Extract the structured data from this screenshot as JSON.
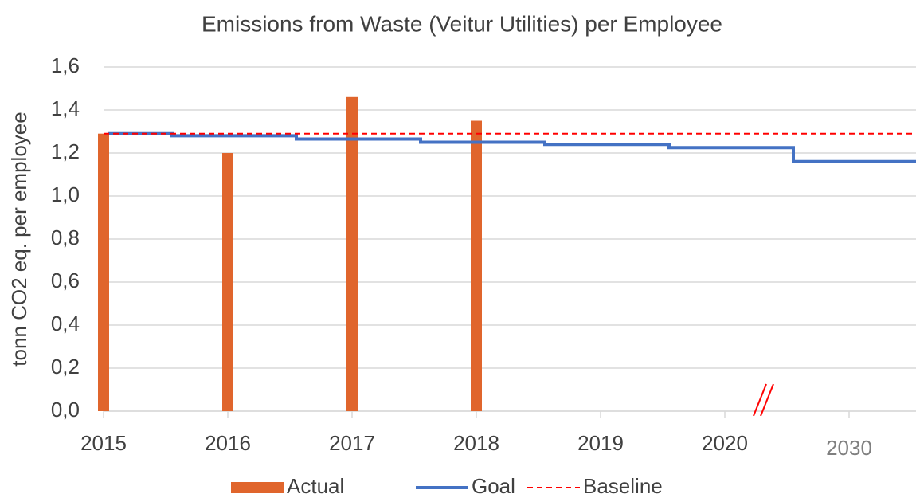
{
  "chart_data": {
    "type": "bar-line",
    "title": "Emissions from Waste (Veitur Utilities) per Employee",
    "y_label": "tonn CO2 eq. per employee",
    "categories": [
      "2015",
      "2016",
      "2017",
      "2018",
      "2019",
      "2020",
      "2030"
    ],
    "series": [
      {
        "name": "Actual",
        "type": "bar",
        "color": "#e0652c",
        "values": [
          1.29,
          1.2,
          1.46,
          1.35,
          null,
          null,
          null
        ]
      },
      {
        "name": "Goal",
        "type": "step",
        "color": "#4472c4",
        "values": [
          1.29,
          1.28,
          1.265,
          1.25,
          1.24,
          1.225,
          1.16
        ]
      },
      {
        "name": "Baseline",
        "type": "dashed",
        "color": "#ff0000",
        "values": [
          1.29,
          1.29,
          1.29,
          1.29,
          1.29,
          1.29,
          1.29
        ]
      }
    ],
    "ylim": [
      0,
      1.6
    ],
    "yticks": [
      {
        "value": 0,
        "label": "0,0"
      },
      {
        "value": 0.2,
        "label": "0,2"
      },
      {
        "value": 0.4,
        "label": "0,4"
      },
      {
        "value": 0.6,
        "label": "0,6"
      },
      {
        "value": 0.8,
        "label": "0,8"
      },
      {
        "value": 1.0,
        "label": "1,0"
      },
      {
        "value": 1.2,
        "label": "1,2"
      },
      {
        "value": 1.4,
        "label": "1,4"
      },
      {
        "value": 1.6,
        "label": "1,6"
      }
    ],
    "grid": true
  }
}
